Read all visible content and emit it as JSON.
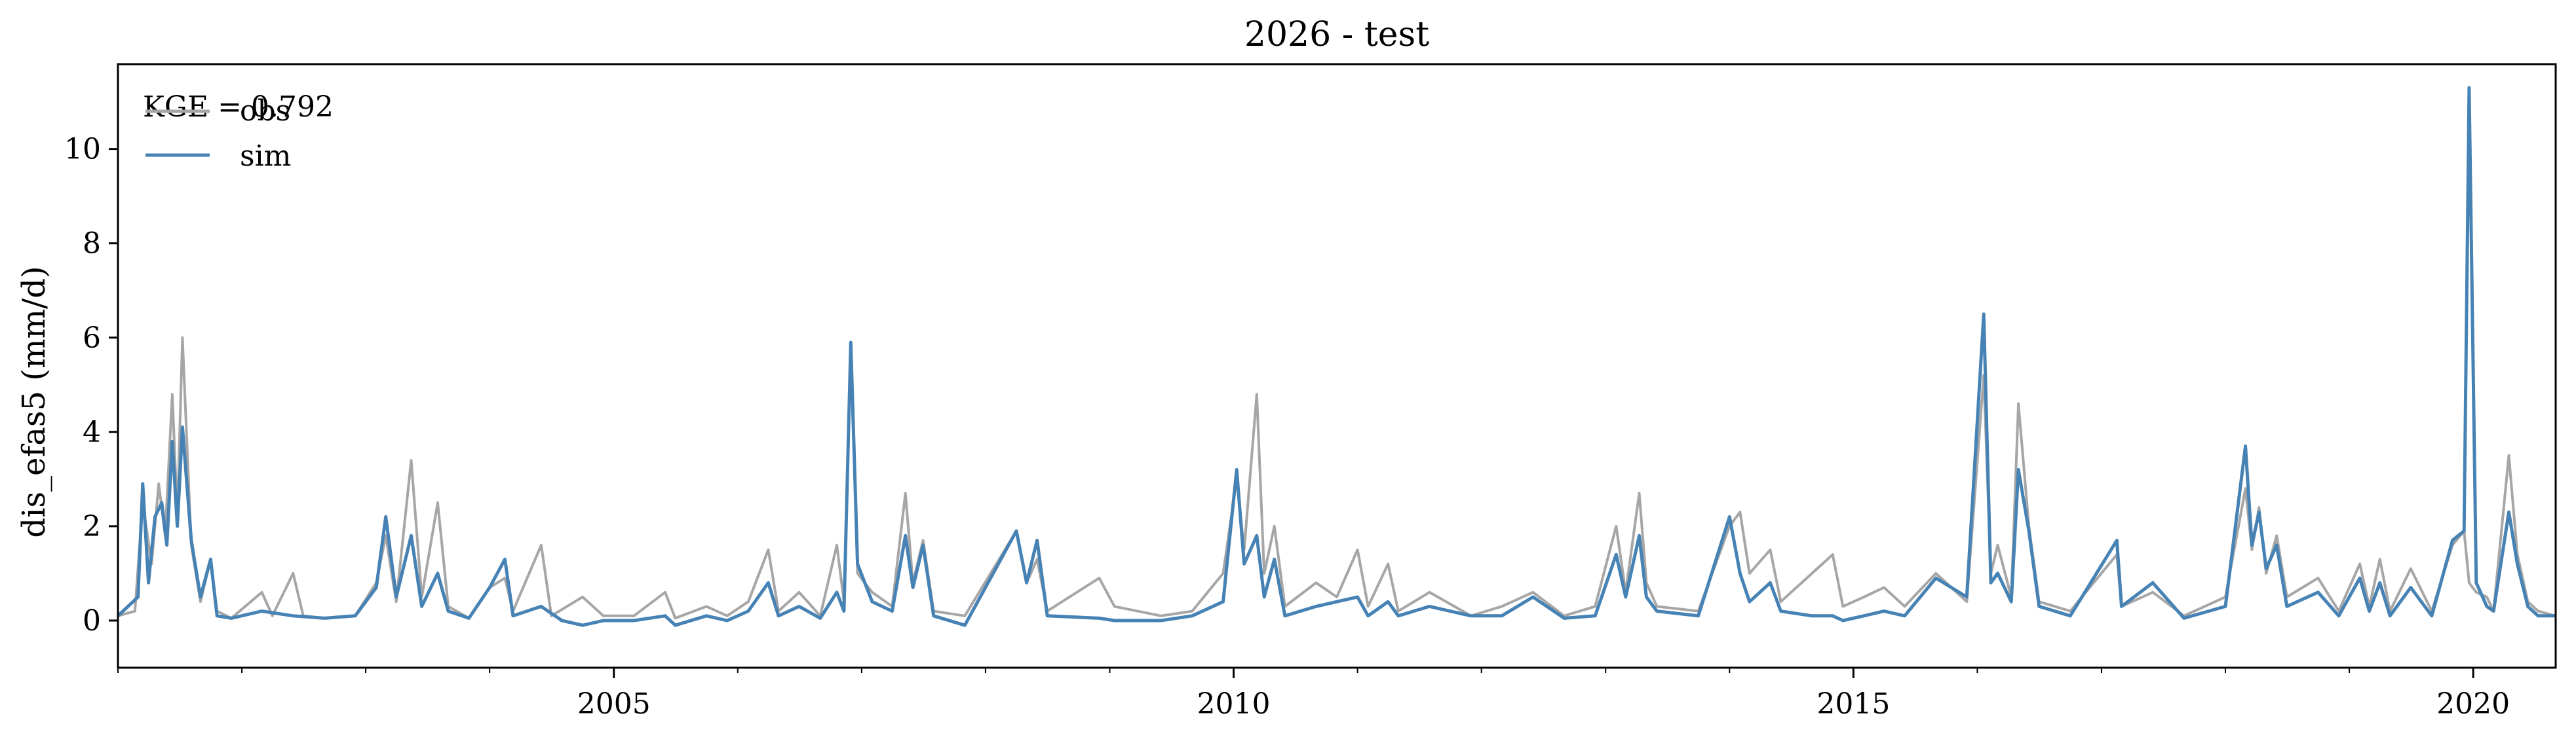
{
  "chart_data": {
    "type": "line",
    "title": "2026 - test",
    "xlabel": "",
    "ylabel": "dis_efas5 (mm/d)",
    "annotation": "KGE = 0.792",
    "xlim": [
      "2001-01-01",
      "2020-08-31"
    ],
    "ylim": [
      -1,
      11.8
    ],
    "x_ticks": [
      {
        "date": "2005-01-01",
        "label": "2005"
      },
      {
        "date": "2010-01-01",
        "label": "2010"
      },
      {
        "date": "2015-01-01",
        "label": "2015"
      },
      {
        "date": "2020-01-01",
        "label": "2020"
      }
    ],
    "y_ticks": [
      0,
      2,
      4,
      6,
      8,
      10
    ],
    "grid": false,
    "legend": "upper-left",
    "series": [
      {
        "name": "obs",
        "color": "#a6a6a6",
        "points": [
          [
            "2001-01-01",
            0.1
          ],
          [
            "2001-02-20",
            0.2
          ],
          [
            "2001-03-15",
            2.5
          ],
          [
            "2001-04-10",
            1.2
          ],
          [
            "2001-05-01",
            2.9
          ],
          [
            "2001-05-20",
            1.8
          ],
          [
            "2001-06-10",
            4.8
          ],
          [
            "2001-06-25",
            2.2
          ],
          [
            "2001-07-10",
            6.0
          ],
          [
            "2001-08-05",
            1.6
          ],
          [
            "2001-09-01",
            0.4
          ],
          [
            "2001-10-01",
            1.3
          ],
          [
            "2001-10-20",
            0.2
          ],
          [
            "2001-12-01",
            0.05
          ],
          [
            "2002-03-01",
            0.6
          ],
          [
            "2002-04-01",
            0.1
          ],
          [
            "2002-06-01",
            1.0
          ],
          [
            "2002-07-01",
            0.1
          ],
          [
            "2002-09-01",
            0.05
          ],
          [
            "2002-12-01",
            0.1
          ],
          [
            "2003-02-01",
            0.8
          ],
          [
            "2003-03-01",
            1.8
          ],
          [
            "2003-04-01",
            0.4
          ],
          [
            "2003-05-15",
            3.4
          ],
          [
            "2003-06-15",
            0.5
          ],
          [
            "2003-08-01",
            2.5
          ],
          [
            "2003-09-01",
            0.3
          ],
          [
            "2003-11-01",
            0.05
          ],
          [
            "2004-01-01",
            0.7
          ],
          [
            "2004-02-15",
            0.9
          ],
          [
            "2004-03-10",
            0.2
          ],
          [
            "2004-06-01",
            1.6
          ],
          [
            "2004-07-01",
            0.1
          ],
          [
            "2004-10-01",
            0.5
          ],
          [
            "2004-12-01",
            0.1
          ],
          [
            "2005-03-01",
            0.1
          ],
          [
            "2005-06-01",
            0.6
          ],
          [
            "2005-07-01",
            0.05
          ],
          [
            "2005-10-01",
            0.3
          ],
          [
            "2005-12-01",
            0.1
          ],
          [
            "2006-02-01",
            0.4
          ],
          [
            "2006-04-01",
            1.5
          ],
          [
            "2006-05-01",
            0.2
          ],
          [
            "2006-07-01",
            0.6
          ],
          [
            "2006-09-01",
            0.1
          ],
          [
            "2006-10-20",
            1.6
          ],
          [
            "2006-11-10",
            0.4
          ],
          [
            "2006-11-30",
            5.8
          ],
          [
            "2006-12-20",
            1.0
          ],
          [
            "2007-02-01",
            0.6
          ],
          [
            "2007-04-01",
            0.3
          ],
          [
            "2007-05-10",
            2.7
          ],
          [
            "2007-06-01",
            0.8
          ],
          [
            "2007-07-01",
            1.7
          ],
          [
            "2007-08-01",
            0.2
          ],
          [
            "2007-11-01",
            0.1
          ],
          [
            "2008-04-01",
            1.9
          ],
          [
            "2008-05-01",
            0.8
          ],
          [
            "2008-06-01",
            1.3
          ],
          [
            "2008-07-01",
            0.2
          ],
          [
            "2008-12-01",
            0.9
          ],
          [
            "2009-01-15",
            0.3
          ],
          [
            "2009-06-01",
            0.1
          ],
          [
            "2009-09-01",
            0.2
          ],
          [
            "2009-12-01",
            1.0
          ],
          [
            "2010-01-10",
            3.0
          ],
          [
            "2010-02-01",
            1.5
          ],
          [
            "2010-03-10",
            4.8
          ],
          [
            "2010-04-01",
            1.0
          ],
          [
            "2010-05-01",
            2.0
          ],
          [
            "2010-06-01",
            0.3
          ],
          [
            "2010-09-01",
            0.8
          ],
          [
            "2010-11-01",
            0.5
          ],
          [
            "2011-01-01",
            1.5
          ],
          [
            "2011-02-01",
            0.3
          ],
          [
            "2011-04-01",
            1.2
          ],
          [
            "2011-05-01",
            0.2
          ],
          [
            "2011-08-01",
            0.6
          ],
          [
            "2011-12-01",
            0.1
          ],
          [
            "2012-03-01",
            0.3
          ],
          [
            "2012-06-01",
            0.6
          ],
          [
            "2012-09-01",
            0.1
          ],
          [
            "2012-12-01",
            0.3
          ],
          [
            "2013-02-01",
            2.0
          ],
          [
            "2013-03-01",
            0.6
          ],
          [
            "2013-04-10",
            2.7
          ],
          [
            "2013-05-01",
            0.8
          ],
          [
            "2013-06-01",
            0.3
          ],
          [
            "2013-10-01",
            0.2
          ],
          [
            "2014-01-01",
            2.0
          ],
          [
            "2014-02-01",
            2.3
          ],
          [
            "2014-03-01",
            1.0
          ],
          [
            "2014-05-01",
            1.5
          ],
          [
            "2014-06-01",
            0.4
          ],
          [
            "2014-09-01",
            1.0
          ],
          [
            "2014-11-01",
            1.4
          ],
          [
            "2014-12-01",
            0.3
          ],
          [
            "2015-02-01",
            0.5
          ],
          [
            "2015-04-01",
            0.7
          ],
          [
            "2015-06-01",
            0.3
          ],
          [
            "2015-09-01",
            1.0
          ],
          [
            "2015-12-01",
            0.4
          ],
          [
            "2016-01-20",
            5.2
          ],
          [
            "2016-02-10",
            1.0
          ],
          [
            "2016-03-01",
            1.6
          ],
          [
            "2016-04-10",
            0.5
          ],
          [
            "2016-05-01",
            4.6
          ],
          [
            "2016-06-01",
            2.0
          ],
          [
            "2016-07-01",
            0.4
          ],
          [
            "2016-10-01",
            0.2
          ],
          [
            "2017-02-15",
            1.4
          ],
          [
            "2017-03-01",
            0.3
          ],
          [
            "2017-06-01",
            0.6
          ],
          [
            "2017-09-01",
            0.1
          ],
          [
            "2018-01-01",
            0.5
          ],
          [
            "2018-03-01",
            2.8
          ],
          [
            "2018-03-20",
            1.5
          ],
          [
            "2018-04-10",
            2.4
          ],
          [
            "2018-05-01",
            1.0
          ],
          [
            "2018-06-01",
            1.8
          ],
          [
            "2018-07-01",
            0.5
          ],
          [
            "2018-10-01",
            0.9
          ],
          [
            "2018-12-01",
            0.2
          ],
          [
            "2019-02-01",
            1.2
          ],
          [
            "2019-03-01",
            0.3
          ],
          [
            "2019-04-01",
            1.3
          ],
          [
            "2019-05-01",
            0.2
          ],
          [
            "2019-07-01",
            1.1
          ],
          [
            "2019-09-01",
            0.2
          ],
          [
            "2019-11-01",
            1.6
          ],
          [
            "2019-12-05",
            1.9
          ],
          [
            "2019-12-20",
            0.8
          ],
          [
            "2020-01-10",
            0.6
          ],
          [
            "2020-02-10",
            0.5
          ],
          [
            "2020-03-01",
            0.2
          ],
          [
            "2020-04-15",
            3.5
          ],
          [
            "2020-05-10",
            1.4
          ],
          [
            "2020-06-10",
            0.4
          ],
          [
            "2020-07-10",
            0.2
          ],
          [
            "2020-08-31",
            0.1
          ]
        ]
      },
      {
        "name": "sim",
        "color": "#4682b4",
        "points": [
          [
            "2001-01-01",
            0.1
          ],
          [
            "2001-03-01",
            0.5
          ],
          [
            "2001-03-15",
            2.9
          ],
          [
            "2001-04-01",
            0.8
          ],
          [
            "2001-04-20",
            2.2
          ],
          [
            "2001-05-10",
            2.5
          ],
          [
            "2001-05-25",
            1.6
          ],
          [
            "2001-06-10",
            3.8
          ],
          [
            "2001-06-25",
            2.0
          ],
          [
            "2001-07-10",
            4.1
          ],
          [
            "2001-08-05",
            1.7
          ],
          [
            "2001-09-01",
            0.5
          ],
          [
            "2001-10-01",
            1.3
          ],
          [
            "2001-10-20",
            0.1
          ],
          [
            "2001-12-01",
            0.05
          ],
          [
            "2002-03-01",
            0.2
          ],
          [
            "2002-06-01",
            0.1
          ],
          [
            "2002-09-01",
            0.05
          ],
          [
            "2002-12-01",
            0.1
          ],
          [
            "2003-02-01",
            0.7
          ],
          [
            "2003-03-01",
            2.2
          ],
          [
            "2003-04-01",
            0.5
          ],
          [
            "2003-05-15",
            1.8
          ],
          [
            "2003-06-15",
            0.3
          ],
          [
            "2003-08-01",
            1.0
          ],
          [
            "2003-09-01",
            0.2
          ],
          [
            "2003-11-01",
            0.05
          ],
          [
            "2004-01-01",
            0.7
          ],
          [
            "2004-02-15",
            1.3
          ],
          [
            "2004-03-10",
            0.1
          ],
          [
            "2004-06-01",
            0.3
          ],
          [
            "2004-08-01",
            0.0
          ],
          [
            "2004-10-01",
            -0.1
          ],
          [
            "2004-12-01",
            0.0
          ],
          [
            "2005-03-01",
            0.0
          ],
          [
            "2005-06-01",
            0.1
          ],
          [
            "2005-07-01",
            -0.1
          ],
          [
            "2005-10-01",
            0.1
          ],
          [
            "2005-12-01",
            0.0
          ],
          [
            "2006-02-01",
            0.2
          ],
          [
            "2006-04-01",
            0.8
          ],
          [
            "2006-05-01",
            0.1
          ],
          [
            "2006-07-01",
            0.3
          ],
          [
            "2006-09-01",
            0.05
          ],
          [
            "2006-10-20",
            0.6
          ],
          [
            "2006-11-10",
            0.2
          ],
          [
            "2006-11-30",
            5.9
          ],
          [
            "2006-12-20",
            1.2
          ],
          [
            "2007-02-01",
            0.4
          ],
          [
            "2007-04-01",
            0.2
          ],
          [
            "2007-05-10",
            1.8
          ],
          [
            "2007-06-01",
            0.7
          ],
          [
            "2007-07-01",
            1.6
          ],
          [
            "2007-08-01",
            0.1
          ],
          [
            "2007-11-01",
            -0.1
          ],
          [
            "2008-04-01",
            1.9
          ],
          [
            "2008-05-01",
            0.8
          ],
          [
            "2008-06-01",
            1.7
          ],
          [
            "2008-07-01",
            0.1
          ],
          [
            "2008-12-01",
            0.05
          ],
          [
            "2009-01-15",
            0.0
          ],
          [
            "2009-06-01",
            0.0
          ],
          [
            "2009-09-01",
            0.1
          ],
          [
            "2009-12-01",
            0.4
          ],
          [
            "2010-01-10",
            3.2
          ],
          [
            "2010-02-01",
            1.2
          ],
          [
            "2010-03-10",
            1.8
          ],
          [
            "2010-04-01",
            0.5
          ],
          [
            "2010-05-01",
            1.3
          ],
          [
            "2010-06-01",
            0.1
          ],
          [
            "2010-09-01",
            0.3
          ],
          [
            "2010-11-01",
            0.4
          ],
          [
            "2011-01-01",
            0.5
          ],
          [
            "2011-02-01",
            0.1
          ],
          [
            "2011-04-01",
            0.4
          ],
          [
            "2011-05-01",
            0.1
          ],
          [
            "2011-08-01",
            0.3
          ],
          [
            "2011-12-01",
            0.1
          ],
          [
            "2012-03-01",
            0.1
          ],
          [
            "2012-06-01",
            0.5
          ],
          [
            "2012-09-01",
            0.05
          ],
          [
            "2012-12-01",
            0.1
          ],
          [
            "2013-02-01",
            1.4
          ],
          [
            "2013-03-01",
            0.5
          ],
          [
            "2013-04-10",
            1.8
          ],
          [
            "2013-05-01",
            0.5
          ],
          [
            "2013-06-01",
            0.2
          ],
          [
            "2013-10-01",
            0.1
          ],
          [
            "2014-01-01",
            2.2
          ],
          [
            "2014-02-01",
            1.0
          ],
          [
            "2014-03-01",
            0.4
          ],
          [
            "2014-05-01",
            0.8
          ],
          [
            "2014-06-01",
            0.2
          ],
          [
            "2014-09-01",
            0.1
          ],
          [
            "2014-11-01",
            0.1
          ],
          [
            "2014-12-01",
            0.0
          ],
          [
            "2015-02-01",
            0.1
          ],
          [
            "2015-04-01",
            0.2
          ],
          [
            "2015-06-01",
            0.1
          ],
          [
            "2015-09-01",
            0.9
          ],
          [
            "2015-12-01",
            0.5
          ],
          [
            "2016-01-20",
            6.5
          ],
          [
            "2016-02-10",
            0.8
          ],
          [
            "2016-03-01",
            1.0
          ],
          [
            "2016-04-10",
            0.4
          ],
          [
            "2016-05-01",
            3.2
          ],
          [
            "2016-06-01",
            1.9
          ],
          [
            "2016-07-01",
            0.3
          ],
          [
            "2016-10-01",
            0.1
          ],
          [
            "2017-02-15",
            1.7
          ],
          [
            "2017-03-01",
            0.3
          ],
          [
            "2017-06-01",
            0.8
          ],
          [
            "2017-09-01",
            0.05
          ],
          [
            "2018-01-01",
            0.3
          ],
          [
            "2018-03-01",
            3.7
          ],
          [
            "2018-03-20",
            1.6
          ],
          [
            "2018-04-10",
            2.3
          ],
          [
            "2018-05-01",
            1.1
          ],
          [
            "2018-06-01",
            1.6
          ],
          [
            "2018-07-01",
            0.3
          ],
          [
            "2018-10-01",
            0.6
          ],
          [
            "2018-12-01",
            0.1
          ],
          [
            "2019-02-01",
            0.9
          ],
          [
            "2019-03-01",
            0.2
          ],
          [
            "2019-04-01",
            0.8
          ],
          [
            "2019-05-01",
            0.1
          ],
          [
            "2019-07-01",
            0.7
          ],
          [
            "2019-09-01",
            0.1
          ],
          [
            "2019-11-01",
            1.7
          ],
          [
            "2019-12-05",
            1.9
          ],
          [
            "2019-12-20",
            11.3
          ],
          [
            "2020-01-10",
            0.8
          ],
          [
            "2020-02-10",
            0.3
          ],
          [
            "2020-03-01",
            0.2
          ],
          [
            "2020-04-15",
            2.3
          ],
          [
            "2020-05-10",
            1.2
          ],
          [
            "2020-06-10",
            0.3
          ],
          [
            "2020-07-10",
            0.1
          ],
          [
            "2020-08-31",
            0.1
          ]
        ]
      }
    ]
  }
}
